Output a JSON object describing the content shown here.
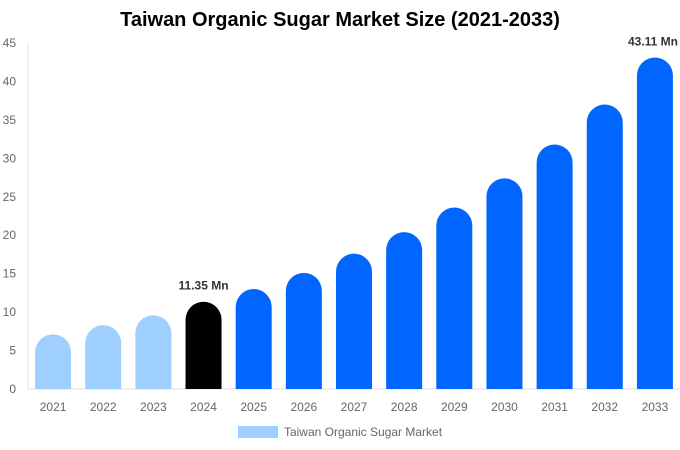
{
  "chart_data": {
    "type": "bar",
    "title": "Taiwan Organic Sugar Market Size (2021-2033)",
    "categories": [
      "2021",
      "2022",
      "2023",
      "2024",
      "2025",
      "2026",
      "2027",
      "2028",
      "2029",
      "2030",
      "2031",
      "2032",
      "2033"
    ],
    "series": [
      {
        "name": "Taiwan Organic Sugar Market",
        "values": [
          7.1,
          8.3,
          9.6,
          11.35,
          13.0,
          15.1,
          17.6,
          20.4,
          23.6,
          27.4,
          31.8,
          37.0,
          43.11
        ]
      }
    ],
    "data_labels": [
      {
        "category": "2024",
        "text": "11.35 Mn"
      },
      {
        "category": "2033",
        "text": "43.11 Mn"
      }
    ],
    "ylim": [
      0,
      45
    ],
    "yticks": [
      0,
      5,
      10,
      15,
      20,
      25,
      30,
      35,
      40,
      45
    ],
    "xlabel": "",
    "ylabel": "",
    "grid": false,
    "legend_position": "bottom",
    "colors": {
      "historical": "#9ecfff",
      "current": "#000000",
      "forecast": "#0066ff"
    }
  }
}
